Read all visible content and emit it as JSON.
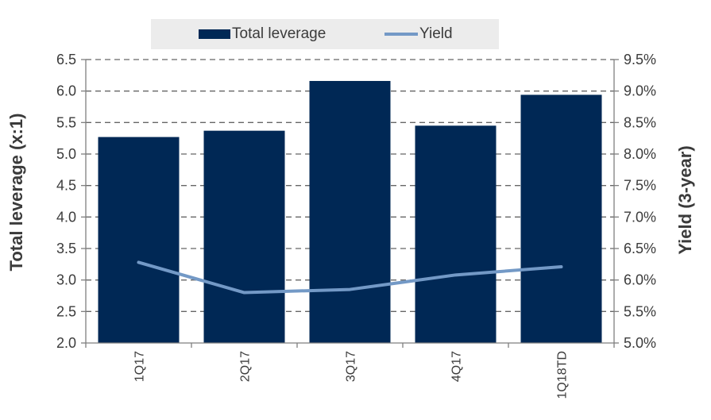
{
  "chart_data": {
    "type": "bar",
    "categories": [
      "1Q17",
      "2Q17",
      "3Q17",
      "4Q17",
      "1Q18TD"
    ],
    "series": [
      {
        "name": "Total leverage",
        "type": "bar",
        "axis": "left",
        "values": [
          5.27,
          5.37,
          6.16,
          5.45,
          5.94
        ]
      },
      {
        "name": "Yield",
        "type": "line",
        "axis": "right",
        "values": [
          6.28,
          5.8,
          5.85,
          6.08,
          6.21
        ]
      }
    ],
    "ylabel": "Total leverage (x:1)",
    "y2label": "Yield (3-year)",
    "ylim": [
      2.0,
      6.5
    ],
    "y2lim": [
      5.0,
      9.5
    ],
    "yticks": [
      "2.0",
      "2.5",
      "3.0",
      "3.5",
      "4.0",
      "4.5",
      "5.0",
      "5.5",
      "6.0",
      "6.5"
    ],
    "y2ticks": [
      "5.0%",
      "5.5%",
      "6.0%",
      "6.5%",
      "7.0%",
      "7.5%",
      "8.0%",
      "8.5%",
      "9.0%",
      "9.5%"
    ],
    "grid": "dashed-horizontal",
    "legend": "top-center",
    "colors": {
      "bar": "#002855",
      "line": "#7399c6",
      "grid": "#666666",
      "axis": "#7f7f7f",
      "legend_bg": "#ececec"
    }
  }
}
